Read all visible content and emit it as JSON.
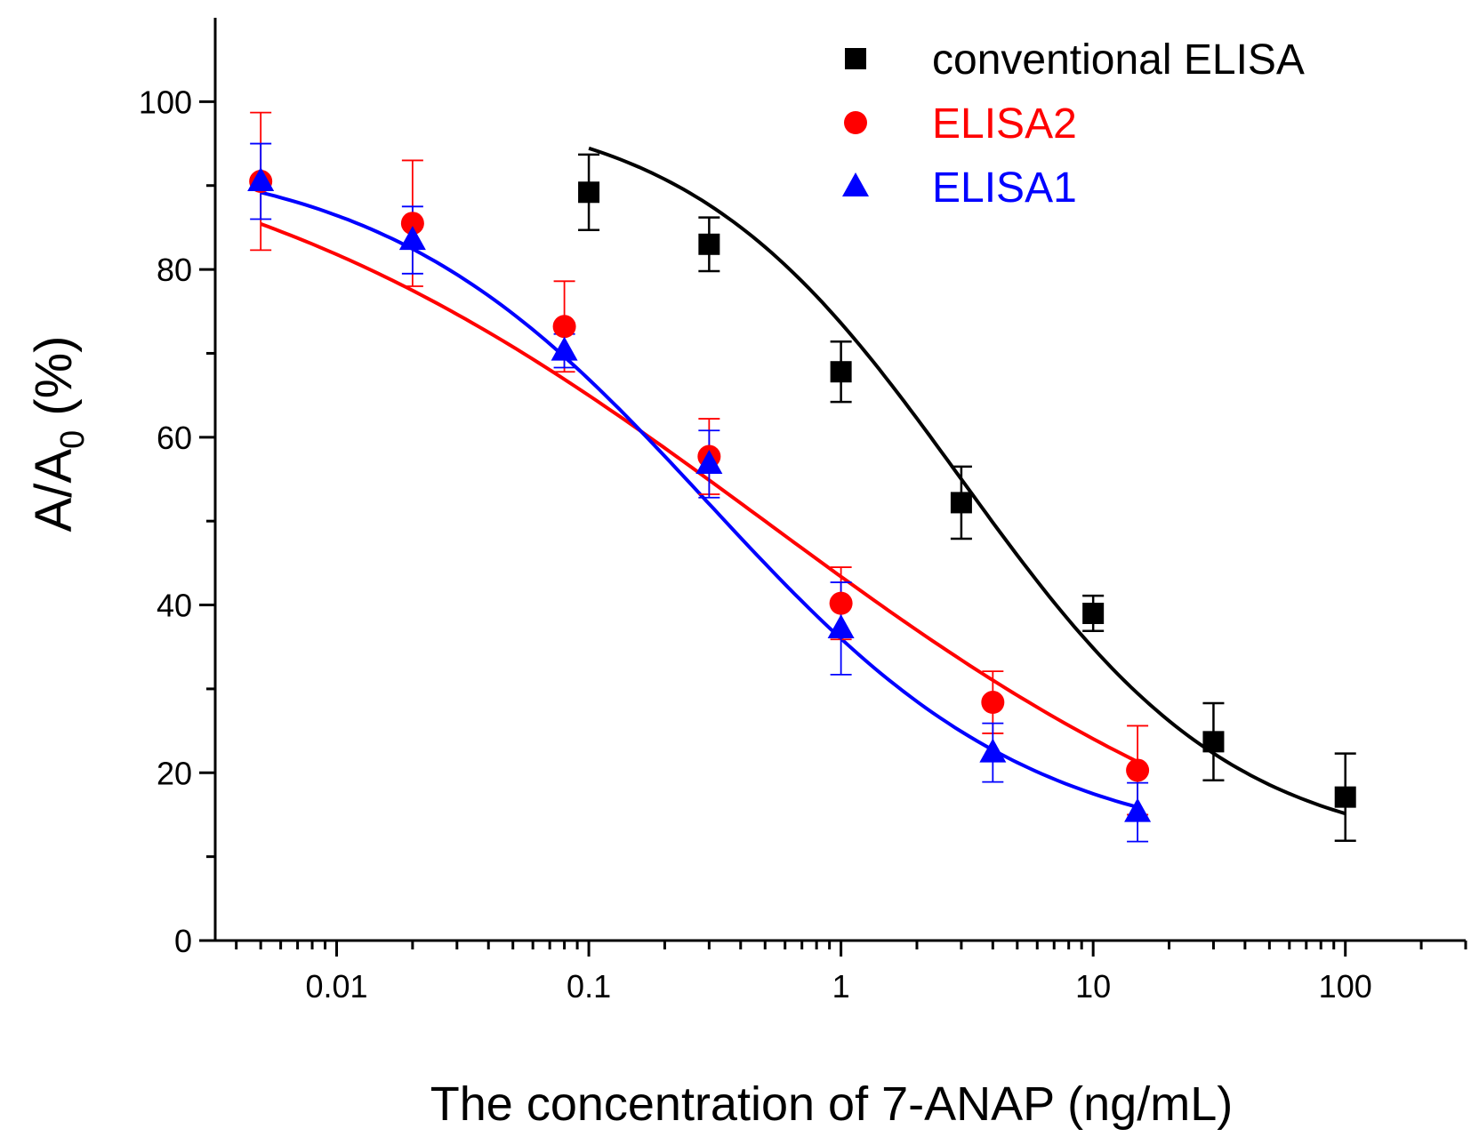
{
  "chart_data": {
    "type": "scatter",
    "xscale": "log",
    "xlabel": "The concentration of 7-ANAP (ng/mL)",
    "ylabel_main": "A/A",
    "ylabel_sub": "0",
    "ylabel_suffix": " (%)",
    "xlim": [
      0.0033,
      300
    ],
    "ylim": [
      0,
      110
    ],
    "x_tick_values": [
      0.01,
      0.1,
      1,
      10,
      100
    ],
    "x_tick_labels": [
      "0.01",
      "0.1",
      "1",
      "10",
      "100"
    ],
    "y_tick_values": [
      0,
      20,
      40,
      60,
      80,
      100
    ],
    "y_tick_labels": [
      "0",
      "20",
      "40",
      "60",
      "80",
      "100"
    ],
    "legend_position": "top-right",
    "series": [
      {
        "name": "conventional ELISA",
        "marker": "square",
        "color": "#000000",
        "x": [
          0.1,
          0.3,
          1,
          3,
          10,
          30,
          100
        ],
        "y": [
          89.2,
          83.0,
          67.8,
          52.2,
          39.0,
          23.7,
          17.1
        ],
        "err": [
          4.5,
          3.2,
          3.6,
          4.3,
          2.1,
          4.6,
          5.2
        ],
        "fit": {
          "top": 100,
          "bottom": 10,
          "ec50": 3.0,
          "slope": 0.8
        }
      },
      {
        "name": "ELISA2",
        "marker": "circle",
        "color": "#ff0000",
        "x": [
          0.005,
          0.02,
          0.08,
          0.3,
          1,
          4,
          15
        ],
        "y": [
          90.5,
          85.5,
          73.2,
          57.7,
          40.2,
          28.4,
          20.3
        ],
        "err": [
          8.2,
          7.5,
          5.4,
          4.5,
          4.3,
          3.7,
          5.3
        ],
        "fit": {
          "top": 100,
          "bottom": 0,
          "ec50": 0.5,
          "slope": 0.384
        }
      },
      {
        "name": "ELISA1",
        "marker": "triangle",
        "color": "#0000ff",
        "x": [
          0.005,
          0.02,
          0.08,
          0.3,
          1,
          4,
          15
        ],
        "y": [
          90.5,
          83.5,
          70.3,
          56.8,
          37.2,
          22.4,
          15.3
        ],
        "err": [
          4.5,
          4.0,
          2.0,
          4.0,
          5.5,
          3.5,
          3.5
        ],
        "fit": {
          "top": 94.3,
          "bottom": 10.28,
          "ec50": 0.295,
          "slope": 0.671
        }
      }
    ]
  }
}
